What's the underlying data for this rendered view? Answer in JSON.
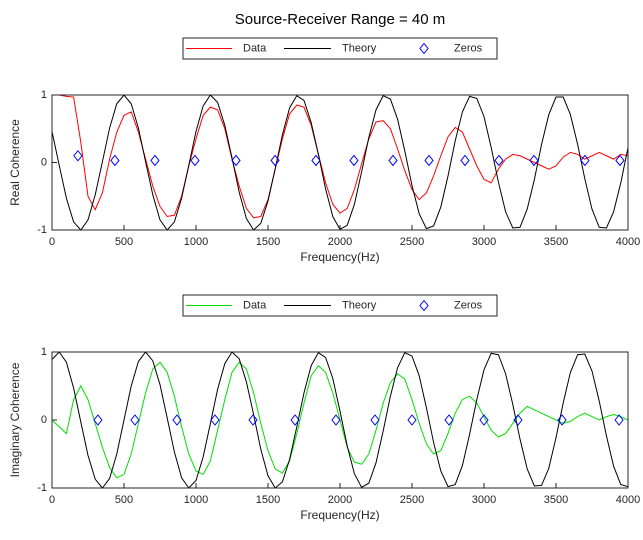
{
  "title": "Source-Receiver Range = 40 m",
  "chart_data": [
    {
      "type": "line",
      "x_label": "Frequency(Hz)",
      "y_label": "Real Coherence",
      "xlim": [
        0,
        4000
      ],
      "xticks": [
        0,
        500,
        1000,
        1500,
        2000,
        2500,
        3000,
        3500,
        4000
      ],
      "ylim": [
        -1,
        1
      ],
      "yticks": [
        -1,
        0,
        1
      ],
      "x": [
        0,
        50,
        100,
        150,
        200,
        250,
        300,
        350,
        400,
        450,
        500,
        550,
        600,
        650,
        700,
        750,
        800,
        850,
        900,
        950,
        1000,
        1050,
        1100,
        1150,
        1200,
        1250,
        1300,
        1350,
        1400,
        1450,
        1500,
        1550,
        1600,
        1650,
        1700,
        1750,
        1800,
        1850,
        1900,
        1950,
        2000,
        2050,
        2100,
        2150,
        2200,
        2250,
        2300,
        2350,
        2400,
        2450,
        2500,
        2550,
        2600,
        2650,
        2700,
        2750,
        2800,
        2850,
        2900,
        2950,
        3000,
        3050,
        3100,
        3150,
        3200,
        3250,
        3300,
        3350,
        3400,
        3450,
        3500,
        3550,
        3600,
        3650,
        3700,
        3750,
        3800,
        3850,
        3900,
        3950,
        4000
      ],
      "series": [
        {
          "name": "Data",
          "color": "#ff0000",
          "values": [
            1.0,
            1.0,
            0.98,
            0.97,
            0.3,
            -0.5,
            -0.7,
            -0.45,
            0.05,
            0.45,
            0.7,
            0.75,
            0.45,
            0.05,
            -0.35,
            -0.65,
            -0.8,
            -0.78,
            -0.5,
            -0.05,
            0.35,
            0.7,
            0.82,
            0.78,
            0.5,
            0.05,
            -0.35,
            -0.68,
            -0.82,
            -0.8,
            -0.55,
            -0.1,
            0.35,
            0.72,
            0.85,
            0.82,
            0.55,
            0.12,
            -0.3,
            -0.62,
            -0.75,
            -0.68,
            -0.4,
            -0.02,
            0.35,
            0.6,
            0.62,
            0.5,
            0.2,
            -0.12,
            -0.4,
            -0.55,
            -0.45,
            -0.2,
            0.1,
            0.38,
            0.52,
            0.45,
            0.2,
            -0.05,
            -0.25,
            -0.3,
            -0.1,
            0.05,
            0.12,
            0.1,
            0.05,
            0.0,
            -0.05,
            -0.1,
            -0.05,
            0.08,
            0.15,
            0.12,
            0.05,
            0.1,
            0.15,
            0.1,
            0.05,
            0.12,
            0.1
          ]
        },
        {
          "name": "Theory",
          "color": "#000000",
          "values": [
            0.46,
            -0.04,
            -0.53,
            -0.88,
            -1.0,
            -0.85,
            -0.48,
            0.01,
            0.51,
            0.87,
            1.0,
            0.87,
            0.51,
            0.01,
            -0.48,
            -0.85,
            -1.0,
            -0.88,
            -0.53,
            -0.04,
            0.46,
            0.84,
            1.0,
            0.89,
            0.55,
            0.07,
            -0.44,
            -0.83,
            -1.0,
            -0.9,
            -0.57,
            -0.09,
            0.41,
            0.81,
            0.99,
            0.92,
            0.59,
            0.12,
            -0.39,
            -0.8,
            -0.99,
            -0.93,
            -0.62,
            -0.14,
            0.37,
            0.78,
            0.99,
            0.94,
            0.64,
            0.17,
            -0.34,
            -0.76,
            -0.98,
            -0.94,
            -0.66,
            -0.2,
            0.32,
            0.75,
            0.98,
            0.95,
            0.68,
            0.22,
            -0.29,
            -0.73,
            -0.97,
            -0.96,
            -0.69,
            -0.25,
            0.27,
            0.71,
            0.97,
            0.97,
            0.71,
            0.27,
            -0.24,
            -0.69,
            -0.96,
            -0.97,
            -0.73,
            -0.3,
            0.22
          ]
        },
        {
          "name": "Zeros",
          "color": "#0000ff",
          "marker": "diamond",
          "x": [
            180,
            437,
            715,
            993,
            1278,
            1549,
            1833,
            2097,
            2368,
            2618,
            2868,
            3104,
            3347,
            3701,
            3944
          ],
          "values": [
            0.1,
            0.03,
            0.03,
            0.03,
            0.03,
            0.03,
            0.03,
            0.03,
            0.03,
            0.03,
            0.03,
            0.03,
            0.03,
            0.03,
            0.03
          ]
        }
      ]
    },
    {
      "type": "line",
      "x_label": "Frequency(Hz)",
      "y_label": "Imaginary Coherence",
      "xlim": [
        0,
        4000
      ],
      "xticks": [
        0,
        500,
        1000,
        1500,
        2000,
        2500,
        3000,
        3500,
        4000
      ],
      "ylim": [
        -1,
        1
      ],
      "yticks": [
        -1,
        0,
        1
      ],
      "x": [
        0,
        50,
        100,
        150,
        200,
        250,
        300,
        350,
        400,
        450,
        500,
        550,
        600,
        650,
        700,
        750,
        800,
        850,
        900,
        950,
        1000,
        1050,
        1100,
        1150,
        1200,
        1250,
        1300,
        1350,
        1400,
        1450,
        1500,
        1550,
        1600,
        1650,
        1700,
        1750,
        1800,
        1850,
        1900,
        1950,
        2000,
        2050,
        2100,
        2150,
        2200,
        2250,
        2300,
        2350,
        2400,
        2450,
        2500,
        2550,
        2600,
        2650,
        2700,
        2750,
        2800,
        2850,
        2900,
        2950,
        3000,
        3050,
        3100,
        3150,
        3200,
        3250,
        3300,
        3350,
        3400,
        3450,
        3500,
        3550,
        3600,
        3650,
        3700,
        3750,
        3800,
        3850,
        3900,
        3950,
        4000
      ],
      "series": [
        {
          "name": "Data",
          "color": "#00e000",
          "values": [
            0.0,
            -0.1,
            -0.2,
            0.3,
            0.5,
            0.3,
            -0.05,
            -0.4,
            -0.7,
            -0.85,
            -0.8,
            -0.5,
            -0.05,
            0.4,
            0.75,
            0.85,
            0.7,
            0.35,
            -0.1,
            -0.5,
            -0.75,
            -0.8,
            -0.6,
            -0.15,
            0.3,
            0.7,
            0.85,
            0.75,
            0.4,
            -0.05,
            -0.45,
            -0.72,
            -0.78,
            -0.6,
            -0.2,
            0.25,
            0.65,
            0.8,
            0.7,
            0.4,
            0.0,
            -0.4,
            -0.62,
            -0.65,
            -0.5,
            -0.15,
            0.25,
            0.55,
            0.68,
            0.6,
            0.3,
            -0.05,
            -0.35,
            -0.5,
            -0.45,
            -0.2,
            0.1,
            0.3,
            0.35,
            0.25,
            0.05,
            -0.15,
            -0.25,
            -0.2,
            -0.05,
            0.1,
            0.2,
            0.15,
            0.1,
            0.05,
            0.0,
            -0.05,
            -0.02,
            0.05,
            0.1,
            0.05,
            0.0,
            0.05,
            0.08,
            0.05,
            0.0
          ]
        },
        {
          "name": "Theory",
          "color": "#000000",
          "values": [
            0.89,
            1.0,
            0.85,
            0.47,
            -0.03,
            -0.52,
            -0.87,
            -1.0,
            -0.86,
            -0.5,
            0.0,
            0.5,
            0.86,
            1.0,
            0.87,
            0.52,
            0.03,
            -0.47,
            -0.85,
            -1.0,
            -0.89,
            -0.54,
            -0.05,
            0.45,
            0.83,
            1.0,
            0.9,
            0.56,
            0.08,
            -0.43,
            -0.82,
            -1.0,
            -0.91,
            -0.58,
            -0.1,
            0.4,
            0.8,
            0.99,
            0.92,
            0.61,
            0.13,
            -0.38,
            -0.79,
            -0.99,
            -0.93,
            -0.63,
            -0.16,
            0.35,
            0.77,
            0.99,
            0.94,
            0.65,
            0.18,
            -0.33,
            -0.75,
            -0.98,
            -0.95,
            -0.67,
            -0.21,
            0.3,
            0.74,
            0.98,
            0.96,
            0.68,
            0.23,
            -0.28,
            -0.72,
            -0.97,
            -0.96,
            -0.71,
            -0.26,
            0.25,
            0.7,
            0.96,
            0.97,
            0.72,
            0.28,
            -0.23,
            -0.68,
            -0.95,
            -0.98
          ]
        },
        {
          "name": "Zeros",
          "color": "#0000ff",
          "marker": "diamond",
          "x": [
            319,
            576,
            868,
            1132,
            1396,
            1688,
            1972,
            2243,
            2500,
            2757,
            3000,
            3236,
            3542,
            3938
          ],
          "values": [
            0,
            0,
            0,
            0,
            0,
            0,
            0,
            0,
            0,
            0,
            0,
            0,
            0,
            0
          ]
        }
      ]
    }
  ]
}
